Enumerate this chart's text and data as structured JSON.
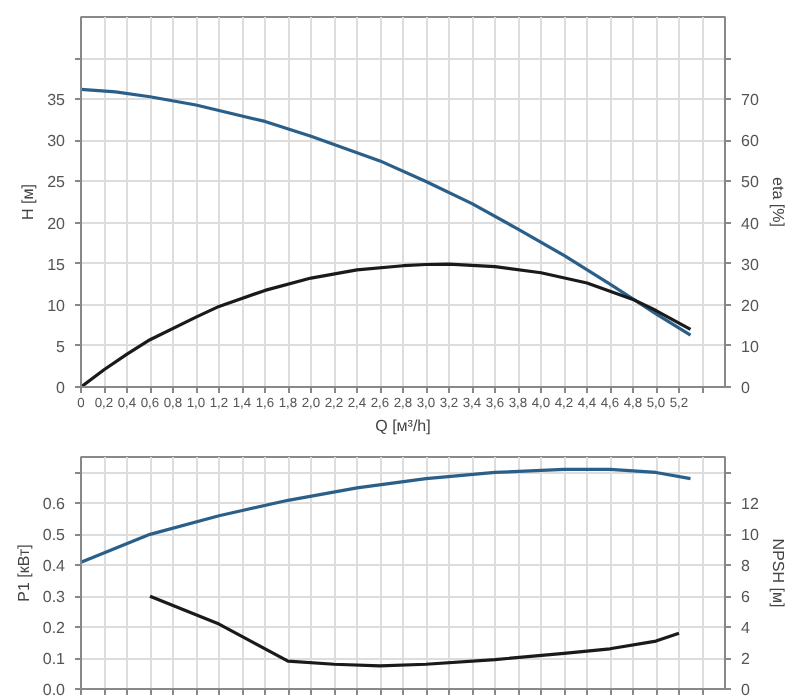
{
  "chart_data": [
    {
      "type": "line",
      "ylabel": "H [м]",
      "y2label": "eta [%]",
      "xlabel": "Q [м³/h]",
      "xlim": [
        0,
        5.6
      ],
      "ylim": [
        0,
        45
      ],
      "y2lim": [
        0,
        90
      ],
      "xticks": [
        0,
        {
          "value": 0.2,
          "label": "0,2"
        },
        {
          "value": 0.4,
          "label": "0,4"
        },
        {
          "value": 0.6,
          "label": "0,6"
        },
        {
          "value": 0.8,
          "label": "0,8"
        },
        {
          "value": 1.0,
          "label": "1,0"
        },
        {
          "value": 1.2,
          "label": "1,2"
        },
        {
          "value": 1.4,
          "label": "1,4"
        },
        {
          "value": 1.6,
          "label": "1,6"
        },
        {
          "value": 1.8,
          "label": "1,8"
        },
        {
          "value": 2.0,
          "label": "2,0"
        },
        {
          "value": 2.2,
          "label": "2,2"
        },
        {
          "value": 2.4,
          "label": "2,4"
        },
        {
          "value": 2.6,
          "label": "2,6"
        },
        {
          "value": 2.8,
          "label": "2,8"
        },
        {
          "value": 3.0,
          "label": "3,0"
        },
        {
          "value": 3.2,
          "label": "3,2"
        },
        {
          "value": 3.4,
          "label": "3,4"
        },
        {
          "value": 3.6,
          "label": "3,6"
        },
        {
          "value": 3.8,
          "label": "3,8"
        },
        {
          "value": 4.0,
          "label": "4,0"
        },
        {
          "value": 4.2,
          "label": "4,2"
        },
        {
          "value": 4.4,
          "label": "4,4"
        },
        {
          "value": 4.6,
          "label": "4,6"
        },
        {
          "value": 4.8,
          "label": "4,8"
        },
        {
          "value": 5.0,
          "label": "5,0"
        },
        {
          "value": 5.2,
          "label": "5,2"
        },
        {
          "value": 5.4,
          "label": null
        }
      ],
      "yticks": [
        0,
        5,
        10,
        15,
        20,
        25,
        30,
        35,
        {
          "value": 40,
          "label": null
        }
      ],
      "y2ticks": [
        0,
        10,
        20,
        30,
        40,
        50,
        60,
        70,
        {
          "value": 80,
          "label": null
        }
      ],
      "grid": true,
      "marker": "none",
      "line_style": "solid",
      "series": [
        {
          "color": "#2a5f8a",
          "x": [
            0,
            0.3,
            0.6,
            1.0,
            1.6,
            2.0,
            2.6,
            3.0,
            3.4,
            3.8,
            4.2,
            4.6,
            5.0,
            5.3
          ],
          "values": [
            36.2,
            35.9,
            35.3,
            34.3,
            32.3,
            30.5,
            27.5,
            25,
            22.3,
            19.2,
            16,
            12.5,
            8.9,
            6.3
          ]
        },
        {
          "color": "#1a1a1a",
          "axis": "y2",
          "x": [
            0,
            0.2,
            0.4,
            0.6,
            1.0,
            1.2,
            1.6,
            2.0,
            2.4,
            2.8,
            3.0,
            3.2,
            3.6,
            4.0,
            4.4,
            4.8,
            5.0,
            5.3
          ],
          "values": [
            0,
            4.2,
            8,
            11.5,
            17,
            19.6,
            23.5,
            26.5,
            28.5,
            29.5,
            29.8,
            29.9,
            29.3,
            27.8,
            25.3,
            21.3,
            18.6,
            14
          ]
        }
      ]
    },
    {
      "type": "line",
      "ylabel": "P1 [кВт]",
      "y2label": "NPSH [м]",
      "xlim": [
        0,
        5.6
      ],
      "ylim": [
        0,
        0.75
      ],
      "y2lim": [
        0,
        15
      ],
      "tick_labels": "y",
      "xticks": [
        0,
        0.2,
        0.4,
        0.6,
        0.8,
        1.0,
        1.2,
        1.4,
        1.6,
        1.8,
        2.0,
        2.2,
        2.4,
        2.6,
        2.8,
        3.0,
        3.2,
        3.4,
        3.6,
        3.8,
        4.0,
        4.2,
        4.4,
        4.6,
        4.8,
        5.0,
        5.2,
        5.4
      ],
      "yticks": [
        {
          "value": 0,
          "label": "0.0"
        },
        0.1,
        0.2,
        0.3,
        0.4,
        0.5,
        0.6,
        {
          "value": 0.7,
          "label": null
        }
      ],
      "y2ticks": [
        0,
        2,
        4,
        6,
        8,
        10,
        12,
        {
          "value": 14,
          "label": null
        }
      ],
      "grid": true,
      "marker": "none",
      "line_style": "solid",
      "series": [
        {
          "color": "#2a5f8a",
          "x": [
            0,
            0.6,
            1.2,
            1.8,
            2.4,
            3.0,
            3.6,
            4.2,
            4.6,
            5.0,
            5.3
          ],
          "values": [
            0.41,
            0.5,
            0.56,
            0.61,
            0.65,
            0.68,
            0.7,
            0.71,
            0.71,
            0.7,
            0.68
          ]
        },
        {
          "color": "#1a1a1a",
          "axis": "y2",
          "x": [
            0.6,
            1.2,
            1.5,
            1.8,
            2.2,
            2.6,
            3.0,
            3.6,
            4.2,
            4.6,
            5.0,
            5.2
          ],
          "values": [
            6,
            4.2,
            3,
            1.8,
            1.6,
            1.5,
            1.6,
            1.9,
            2.3,
            2.6,
            3.1,
            3.6
          ]
        }
      ]
    }
  ]
}
